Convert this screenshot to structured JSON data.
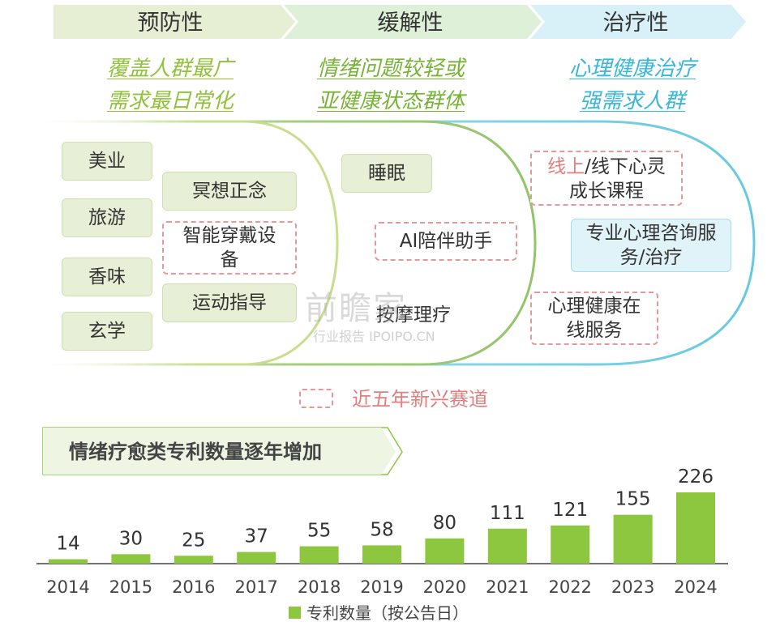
{
  "categories": [
    {
      "label": "预防性",
      "tagline": [
        "覆盖人群最广",
        "需求最日常化"
      ],
      "color": "#92c23c"
    },
    {
      "label": "缓解性",
      "tagline": [
        "情绪问题较轻或",
        "亚健康状态群体"
      ],
      "color": "#78b237"
    },
    {
      "label": "治疗性",
      "tagline": [
        "心理健康治疗",
        "强需求人群"
      ],
      "color": "#3ab6d8"
    }
  ],
  "boxes": {
    "meiye": "美业",
    "lvyou": "旅游",
    "xiangwei": "香味",
    "xuanxue": "玄学",
    "mingxiang": "冥想正念",
    "zhineng": "智能穿戴设备",
    "yundong": "运动指导",
    "shuimian": "睡眠",
    "ai": "AI陪伴助手",
    "anmo": "按摩理疗",
    "xianshang_red": "线上",
    "xianshang_rest": "/线下心灵成长课程",
    "zhuanye": "专业心理咨询服务/治疗",
    "xinli": "心理健康在线服务"
  },
  "legend_emerging": "近五年新兴赛道",
  "watermark": {
    "main": "前瞻家",
    "sub": "行业报告 IPOIPO.CN"
  },
  "colors": {
    "green": "#8dc63f",
    "pale_green": "#e7f0d6",
    "pale_blue": "#e0f3f9",
    "dash_red": "#e39a9a",
    "blue": "#3ab6d8"
  },
  "chart_data": {
    "type": "bar",
    "title": "情绪疗愈类专利数量逐年增加",
    "categories": [
      "2014",
      "2015",
      "2016",
      "2017",
      "2018",
      "2019",
      "2020",
      "2021",
      "2022",
      "2023",
      "2024"
    ],
    "series": [
      {
        "name": "专利数量（按公告日）",
        "values": [
          14,
          30,
          25,
          37,
          55,
          58,
          80,
          111,
          121,
          155,
          226
        ],
        "color": "#8dc63f"
      }
    ],
    "legend_position": "bottom",
    "grid": false
  }
}
